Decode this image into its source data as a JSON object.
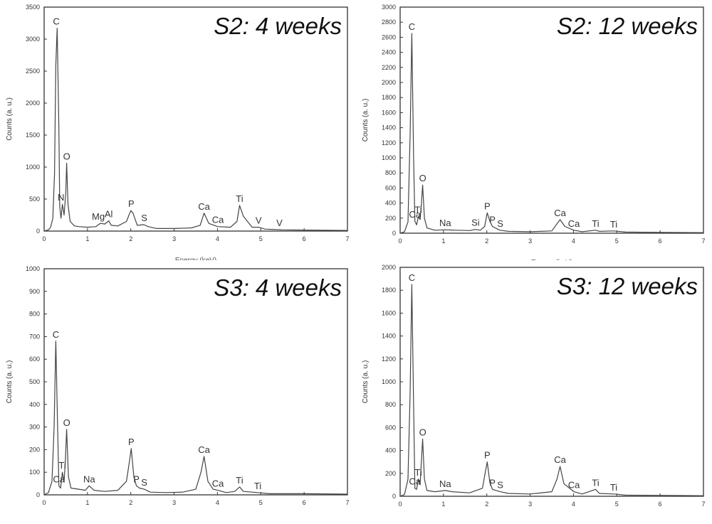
{
  "chart_data": [
    {
      "type": "line",
      "title": "S2: 4 weeks",
      "ylabel": "Counts (a. u.)",
      "xlabel": "Energy (keV)",
      "xlim": [
        0,
        7
      ],
      "ylim": [
        0,
        3500
      ],
      "xticks": [
        0,
        1,
        2,
        3,
        4,
        5,
        6,
        7
      ],
      "yticks": [
        0,
        500,
        1000,
        1500,
        2000,
        2500,
        3000,
        3500
      ],
      "series": [
        {
          "x": [
            0.0,
            0.1,
            0.15,
            0.2,
            0.24,
            0.27,
            0.3,
            0.34,
            0.36,
            0.39,
            0.42,
            0.46,
            0.5,
            0.52,
            0.55,
            0.6,
            0.7,
            0.8,
            1.0,
            1.2,
            1.25,
            1.3,
            1.4,
            1.49,
            1.55,
            1.7,
            1.9,
            2.0,
            2.05,
            2.15,
            2.3,
            2.4,
            2.6,
            3.0,
            3.4,
            3.6,
            3.69,
            3.8,
            4.0,
            4.3,
            4.45,
            4.51,
            4.6,
            4.8,
            4.95,
            5.1,
            5.5,
            6.0,
            7.0
          ],
          "y": [
            0,
            20,
            60,
            200,
            900,
            2600,
            3170,
            1600,
            380,
            200,
            420,
            250,
            600,
            1060,
            420,
            150,
            80,
            70,
            60,
            70,
            100,
            120,
            110,
            160,
            90,
            80,
            150,
            320,
            280,
            90,
            100,
            70,
            40,
            40,
            50,
            90,
            280,
            120,
            70,
            60,
            150,
            400,
            230,
            60,
            60,
            30,
            20,
            15,
            10
          ]
        }
      ],
      "peaks": [
        {
          "label": "C",
          "x": 0.28,
          "y": 3170
        },
        {
          "label": "N",
          "x": 0.39,
          "y": 420
        },
        {
          "label": "O",
          "x": 0.52,
          "y": 1060
        },
        {
          "label": "Mg",
          "x": 1.25,
          "y": 120
        },
        {
          "label": "Al",
          "x": 1.49,
          "y": 160
        },
        {
          "label": "P",
          "x": 2.01,
          "y": 320
        },
        {
          "label": "S",
          "x": 2.31,
          "y": 100
        },
        {
          "label": "Ca",
          "x": 3.69,
          "y": 280
        },
        {
          "label": "Ca",
          "x": 4.01,
          "y": 70
        },
        {
          "label": "Ti",
          "x": 4.51,
          "y": 400
        },
        {
          "label": "V",
          "x": 4.95,
          "y": 60
        },
        {
          "label": "V",
          "x": 5.43,
          "y": 20
        }
      ]
    },
    {
      "type": "line",
      "title": "S2: 12 weeks",
      "ylabel": "Counts (a. u.)",
      "xlabel": "Energy (keV)",
      "xlim": [
        0,
        7
      ],
      "ylim": [
        0,
        3000
      ],
      "xticks": [
        0,
        1,
        2,
        3,
        4,
        5,
        6,
        7
      ],
      "yticks": [
        0,
        200,
        400,
        600,
        800,
        1000,
        1200,
        1400,
        1600,
        1800,
        2000,
        2200,
        2400,
        2600,
        2800,
        3000
      ],
      "series": [
        {
          "x": [
            0.0,
            0.1,
            0.18,
            0.23,
            0.27,
            0.31,
            0.34,
            0.38,
            0.42,
            0.46,
            0.49,
            0.52,
            0.56,
            0.62,
            0.8,
            1.04,
            1.3,
            1.6,
            1.74,
            1.85,
            1.95,
            2.01,
            2.07,
            2.13,
            2.3,
            2.5,
            3.0,
            3.5,
            3.69,
            3.8,
            4.01,
            4.2,
            4.51,
            4.6,
            4.93,
            5.2,
            6.0,
            7.0
          ],
          "y": [
            0,
            20,
            150,
            1300,
            2650,
            1000,
            160,
            110,
            220,
            180,
            380,
            640,
            200,
            70,
            40,
            45,
            40,
            35,
            50,
            40,
            90,
            270,
            160,
            90,
            40,
            25,
            20,
            30,
            180,
            90,
            40,
            20,
            40,
            25,
            30,
            15,
            10,
            8
          ]
        }
      ],
      "peaks": [
        {
          "label": "C",
          "x": 0.27,
          "y": 2650
        },
        {
          "label": "Ca",
          "x": 0.34,
          "y": 160
        },
        {
          "label": "Ti",
          "x": 0.42,
          "y": 220
        },
        {
          "label": "O",
          "x": 0.52,
          "y": 640
        },
        {
          "label": "Na",
          "x": 1.04,
          "y": 45
        },
        {
          "label": "Si",
          "x": 1.74,
          "y": 50
        },
        {
          "label": "P",
          "x": 2.01,
          "y": 270
        },
        {
          "label": "P",
          "x": 2.13,
          "y": 90
        },
        {
          "label": "S",
          "x": 2.31,
          "y": 40
        },
        {
          "label": "Ca",
          "x": 3.69,
          "y": 180
        },
        {
          "label": "Ca",
          "x": 4.01,
          "y": 40
        },
        {
          "label": "Ti",
          "x": 4.51,
          "y": 40
        },
        {
          "label": "Ti",
          "x": 4.93,
          "y": 30
        }
      ]
    },
    {
      "type": "line",
      "title": "S3: 4 weeks",
      "ylabel": "Counts (a. u.)",
      "xlabel": "",
      "xlim": [
        0,
        7
      ],
      "ylim": [
        0,
        1000
      ],
      "xticks": [
        0,
        1,
        2,
        3,
        4,
        5,
        6,
        7
      ],
      "yticks": [
        0,
        100,
        200,
        300,
        400,
        500,
        600,
        700,
        800,
        900,
        1000
      ],
      "series": [
        {
          "x": [
            0.0,
            0.1,
            0.18,
            0.23,
            0.27,
            0.31,
            0.34,
            0.38,
            0.42,
            0.46,
            0.49,
            0.52,
            0.56,
            0.62,
            0.8,
            0.95,
            1.04,
            1.15,
            1.4,
            1.7,
            1.9,
            1.97,
            2.01,
            2.07,
            2.13,
            2.2,
            2.31,
            2.45,
            2.8,
            3.2,
            3.5,
            3.62,
            3.69,
            3.78,
            3.9,
            4.01,
            4.2,
            4.4,
            4.51,
            4.6,
            4.93,
            5.2,
            6.0,
            7.0
          ],
          "y": [
            0,
            10,
            60,
            300,
            680,
            300,
            40,
            30,
            100,
            60,
            150,
            290,
            80,
            30,
            25,
            20,
            40,
            20,
            15,
            20,
            60,
            150,
            205,
            80,
            40,
            30,
            25,
            12,
            10,
            12,
            25,
            100,
            170,
            60,
            25,
            20,
            10,
            15,
            35,
            15,
            10,
            5,
            5,
            3
          ]
        }
      ],
      "peaks": [
        {
          "label": "C",
          "x": 0.27,
          "y": 680
        },
        {
          "label": "Ca",
          "x": 0.34,
          "y": 40
        },
        {
          "label": "Ti",
          "x": 0.42,
          "y": 100
        },
        {
          "label": "O",
          "x": 0.52,
          "y": 290
        },
        {
          "label": "Na",
          "x": 1.04,
          "y": 40
        },
        {
          "label": "P",
          "x": 2.01,
          "y": 205
        },
        {
          "label": "P",
          "x": 2.13,
          "y": 40
        },
        {
          "label": "S",
          "x": 2.31,
          "y": 25
        },
        {
          "label": "Ca",
          "x": 3.69,
          "y": 170
        },
        {
          "label": "Ca",
          "x": 4.01,
          "y": 20
        },
        {
          "label": "Ti",
          "x": 4.51,
          "y": 35
        },
        {
          "label": "Ti",
          "x": 4.93,
          "y": 10
        }
      ]
    },
    {
      "type": "line",
      "title": "S3: 12 weeks",
      "ylabel": "Counts (a. u.)",
      "xlabel": "",
      "xlim": [
        0,
        7
      ],
      "ylim": [
        0,
        2000
      ],
      "xticks": [
        0,
        1,
        2,
        3,
        4,
        5,
        6,
        7
      ],
      "yticks": [
        0,
        200,
        400,
        600,
        800,
        1000,
        1200,
        1400,
        1600,
        1800,
        2000
      ],
      "series": [
        {
          "x": [
            0.0,
            0.1,
            0.18,
            0.23,
            0.27,
            0.31,
            0.34,
            0.38,
            0.42,
            0.46,
            0.49,
            0.52,
            0.56,
            0.62,
            0.8,
            1.04,
            1.2,
            1.6,
            1.9,
            1.97,
            2.01,
            2.07,
            2.13,
            2.31,
            2.5,
            3.0,
            3.5,
            3.62,
            3.69,
            3.78,
            4.01,
            4.2,
            4.51,
            4.6,
            4.93,
            5.2,
            6.0,
            7.0
          ],
          "y": [
            0,
            15,
            150,
            900,
            1850,
            800,
            70,
            60,
            150,
            100,
            300,
            500,
            150,
            50,
            40,
            50,
            40,
            30,
            70,
            220,
            300,
            120,
            60,
            40,
            25,
            20,
            40,
            150,
            260,
            110,
            40,
            20,
            60,
            25,
            20,
            10,
            8,
            5
          ]
        }
      ],
      "peaks": [
        {
          "label": "C",
          "x": 0.27,
          "y": 1850
        },
        {
          "label": "Ca",
          "x": 0.34,
          "y": 70
        },
        {
          "label": "Ti",
          "x": 0.42,
          "y": 150
        },
        {
          "label": "O",
          "x": 0.52,
          "y": 500
        },
        {
          "label": "Na",
          "x": 1.04,
          "y": 50
        },
        {
          "label": "P",
          "x": 2.01,
          "y": 300
        },
        {
          "label": "P",
          "x": 2.13,
          "y": 60
        },
        {
          "label": "S",
          "x": 2.31,
          "y": 40
        },
        {
          "label": "Ca",
          "x": 3.69,
          "y": 260
        },
        {
          "label": "Ca",
          "x": 4.01,
          "y": 40
        },
        {
          "label": "Ti",
          "x": 4.51,
          "y": 60
        },
        {
          "label": "Ti",
          "x": 4.93,
          "y": 20
        }
      ]
    }
  ]
}
